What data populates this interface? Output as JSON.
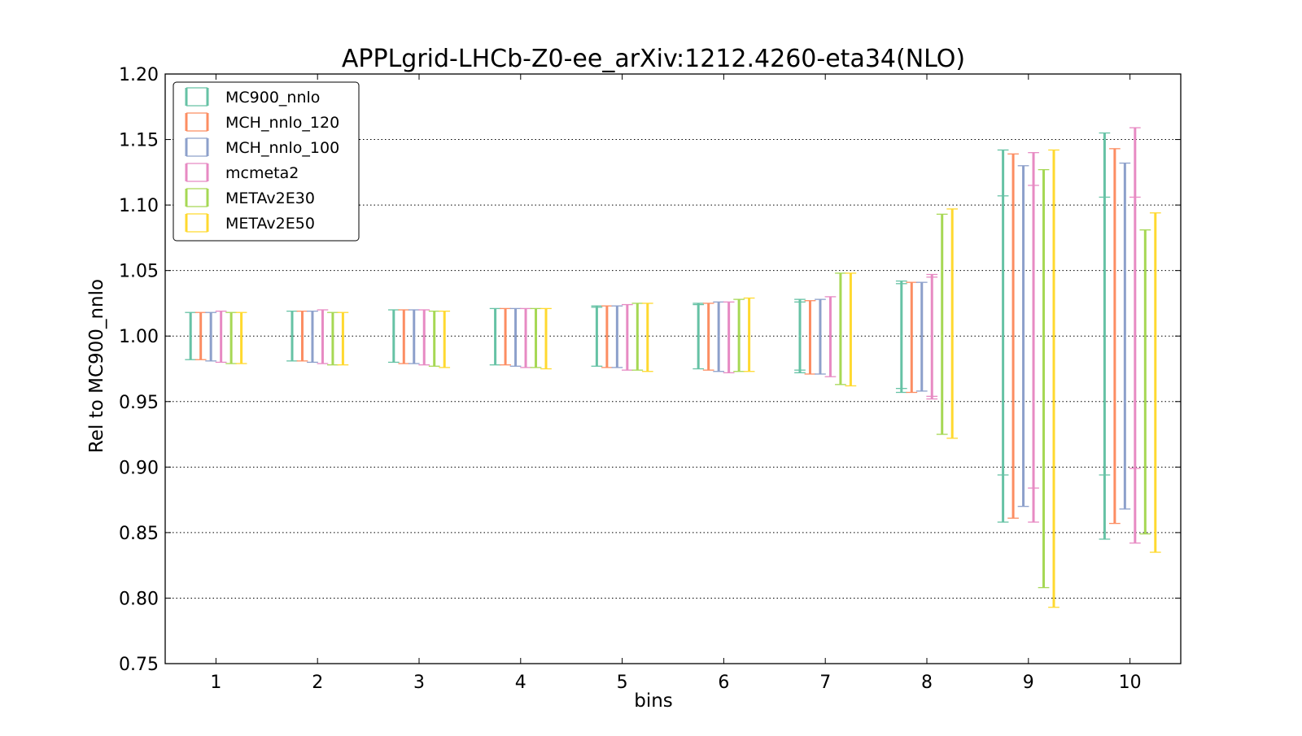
{
  "chart_data": {
    "type": "errorbar",
    "title": "APPLgrid-LHCb-Z0-ee_arXiv:1212.4260-eta34(NLO)",
    "xlabel": "bins",
    "ylabel": "Rel to MC900_nnlo",
    "ylim": [
      0.75,
      1.2
    ],
    "xlim": [
      0.5,
      10.5
    ],
    "yticks": [
      "0.75",
      "0.80",
      "0.85",
      "0.90",
      "0.95",
      "1.00",
      "1.05",
      "1.10",
      "1.15",
      "1.20"
    ],
    "categories": [
      "1",
      "2",
      "3",
      "4",
      "5",
      "6",
      "7",
      "8",
      "9",
      "10"
    ],
    "grid": "horizontal dotted",
    "legend_position": "top-left",
    "series": [
      {
        "name": "MC900_nnlo",
        "color": "#66c2a5",
        "upper": [
          1.018,
          1.019,
          1.02,
          1.021,
          1.023,
          1.025,
          1.028,
          1.042,
          1.142,
          1.155
        ],
        "lower": [
          0.982,
          0.981,
          0.98,
          0.978,
          0.977,
          0.975,
          0.972,
          0.957,
          0.858,
          0.845
        ],
        "inner_upper": [
          1.018,
          1.019,
          1.02,
          1.021,
          1.022,
          1.024,
          1.026,
          1.04,
          1.107,
          1.106
        ],
        "inner_lower": [
          0.982,
          0.981,
          0.98,
          0.978,
          0.977,
          0.975,
          0.974,
          0.96,
          0.894,
          0.894
        ]
      },
      {
        "name": "MCH_nnlo_120",
        "color": "#fc8d62",
        "upper": [
          1.018,
          1.019,
          1.02,
          1.021,
          1.023,
          1.025,
          1.027,
          1.041,
          1.139,
          1.143
        ],
        "lower": [
          0.982,
          0.981,
          0.979,
          0.978,
          0.976,
          0.974,
          0.971,
          0.957,
          0.861,
          0.857
        ],
        "inner_upper": [
          1.018,
          1.019,
          1.02,
          1.021,
          1.023,
          1.025,
          1.027,
          1.041,
          1.139,
          1.143
        ],
        "inner_lower": [
          0.982,
          0.981,
          0.979,
          0.978,
          0.976,
          0.974,
          0.971,
          0.957,
          0.861,
          0.857
        ]
      },
      {
        "name": "MCH_nnlo_100",
        "color": "#8da0cb",
        "upper": [
          1.018,
          1.019,
          1.02,
          1.021,
          1.023,
          1.026,
          1.028,
          1.041,
          1.13,
          1.132
        ],
        "lower": [
          0.981,
          0.98,
          0.979,
          0.977,
          0.976,
          0.973,
          0.971,
          0.958,
          0.87,
          0.868
        ],
        "inner_upper": [
          1.018,
          1.019,
          1.02,
          1.021,
          1.023,
          1.026,
          1.028,
          1.041,
          1.13,
          1.132
        ],
        "inner_lower": [
          0.981,
          0.98,
          0.979,
          0.977,
          0.976,
          0.973,
          0.971,
          0.958,
          0.87,
          0.868
        ]
      },
      {
        "name": "mcmeta2",
        "color": "#e78ac3",
        "upper": [
          1.019,
          1.02,
          1.02,
          1.021,
          1.024,
          1.026,
          1.03,
          1.047,
          1.14,
          1.159
        ],
        "lower": [
          0.98,
          0.979,
          0.978,
          0.976,
          0.974,
          0.972,
          0.969,
          0.952,
          0.858,
          0.842
        ],
        "inner_upper": [
          1.019,
          1.02,
          1.02,
          1.021,
          1.024,
          1.026,
          1.03,
          1.045,
          1.115,
          1.106
        ],
        "inner_lower": [
          0.98,
          0.979,
          0.978,
          0.976,
          0.974,
          0.972,
          0.969,
          0.954,
          0.884,
          0.899
        ]
      },
      {
        "name": "METAv2E30",
        "color": "#a6d854",
        "upper": [
          1.018,
          1.018,
          1.019,
          1.021,
          1.025,
          1.028,
          1.048,
          1.093,
          1.127,
          1.081
        ],
        "lower": [
          0.979,
          0.978,
          0.977,
          0.976,
          0.974,
          0.973,
          0.963,
          0.925,
          0.808,
          0.849
        ],
        "inner_upper": [
          1.018,
          1.018,
          1.019,
          1.021,
          1.025,
          1.028,
          1.048,
          1.093,
          1.127,
          1.081
        ],
        "inner_lower": [
          0.979,
          0.978,
          0.977,
          0.976,
          0.974,
          0.973,
          0.963,
          0.925,
          0.808,
          0.849
        ]
      },
      {
        "name": "METAv2E50",
        "color": "#ffd92f",
        "upper": [
          1.018,
          1.018,
          1.019,
          1.021,
          1.025,
          1.029,
          1.048,
          1.097,
          1.142,
          1.094
        ],
        "lower": [
          0.979,
          0.978,
          0.976,
          0.975,
          0.973,
          0.973,
          0.962,
          0.922,
          0.793,
          0.835
        ],
        "inner_upper": [
          1.018,
          1.018,
          1.019,
          1.021,
          1.025,
          1.029,
          1.048,
          1.097,
          1.142,
          1.094
        ],
        "inner_lower": [
          0.979,
          0.978,
          0.976,
          0.975,
          0.973,
          0.973,
          0.962,
          0.922,
          0.793,
          0.835
        ]
      }
    ]
  }
}
